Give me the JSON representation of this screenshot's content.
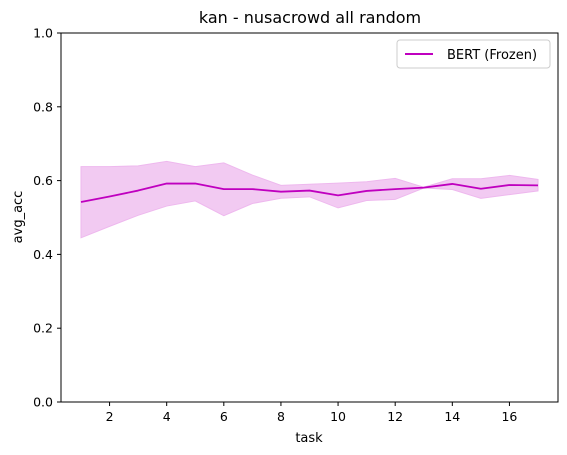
{
  "chart_data": {
    "type": "line",
    "title": "kan - nusacrowd all random",
    "xlabel": "task",
    "ylabel": "avg_acc",
    "xlim": [
      0.3,
      17.7
    ],
    "ylim": [
      0.0,
      1.0
    ],
    "xticks": [
      "2",
      "4",
      "6",
      "8",
      "10",
      "12",
      "14",
      "16"
    ],
    "yticks": [
      "0.0",
      "0.2",
      "0.4",
      "0.6",
      "0.8",
      "1.0"
    ],
    "grid": false,
    "legend_position": "top-right",
    "x": [
      1,
      2,
      3,
      4,
      5,
      6,
      7,
      8,
      9,
      10,
      11,
      12,
      13,
      14,
      15,
      16,
      17
    ],
    "series": [
      {
        "name": "BERT (Frozen)",
        "color": "#bf00bf",
        "band_color": "#eeb8ee",
        "values": [
          0.542,
          0.557,
          0.573,
          0.592,
          0.592,
          0.577,
          0.577,
          0.57,
          0.573,
          0.56,
          0.572,
          0.577,
          0.581,
          0.591,
          0.578,
          0.588,
          0.587
        ],
        "upper": [
          0.638,
          0.638,
          0.64,
          0.652,
          0.638,
          0.648,
          0.615,
          0.587,
          0.59,
          0.593,
          0.597,
          0.606,
          0.582,
          0.605,
          0.605,
          0.614,
          0.603
        ],
        "lower": [
          0.445,
          0.476,
          0.506,
          0.531,
          0.545,
          0.505,
          0.538,
          0.552,
          0.556,
          0.526,
          0.546,
          0.549,
          0.58,
          0.576,
          0.552,
          0.562,
          0.572
        ]
      }
    ]
  }
}
